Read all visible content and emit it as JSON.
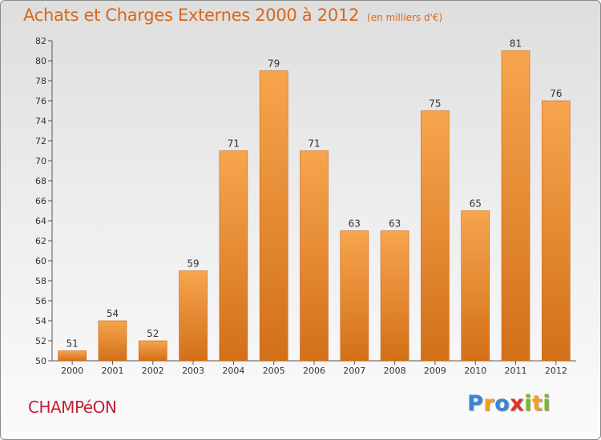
{
  "header": {
    "title": "Achats et Charges Externes 2000 à 2012",
    "subtitle": "(en milliers d'€)"
  },
  "footer": {
    "commune": "CHAMPéON",
    "logo_letters": [
      {
        "ch": "P",
        "color": "#3a86d6"
      },
      {
        "ch": "r",
        "color": "#f2a01e"
      },
      {
        "ch": "o",
        "color": "#3a86d6"
      },
      {
        "ch": "x",
        "color": "#e0302a"
      },
      {
        "ch": "i",
        "color": "#78b928"
      },
      {
        "ch": "t",
        "color": "#f2a01e"
      },
      {
        "ch": "i",
        "color": "#78b928"
      }
    ]
  },
  "chart_data": {
    "type": "bar",
    "title": "Achats et Charges Externes 2000 à 2012",
    "subtitle": "(en milliers d'€)",
    "categories": [
      "2000",
      "2001",
      "2002",
      "2003",
      "2004",
      "2005",
      "2006",
      "2007",
      "2008",
      "2009",
      "2010",
      "2011",
      "2012"
    ],
    "values": [
      51,
      54,
      52,
      59,
      71,
      79,
      71,
      63,
      63,
      75,
      65,
      81,
      76
    ],
    "ylim": [
      50,
      82
    ],
    "yticks": [
      50,
      52,
      54,
      56,
      58,
      60,
      62,
      64,
      66,
      68,
      70,
      72,
      74,
      76,
      78,
      80,
      82
    ],
    "grid": false,
    "bar_color_top": "#f7a54e",
    "bar_color_bottom": "#d27019",
    "bar_border": "#c86414"
  }
}
